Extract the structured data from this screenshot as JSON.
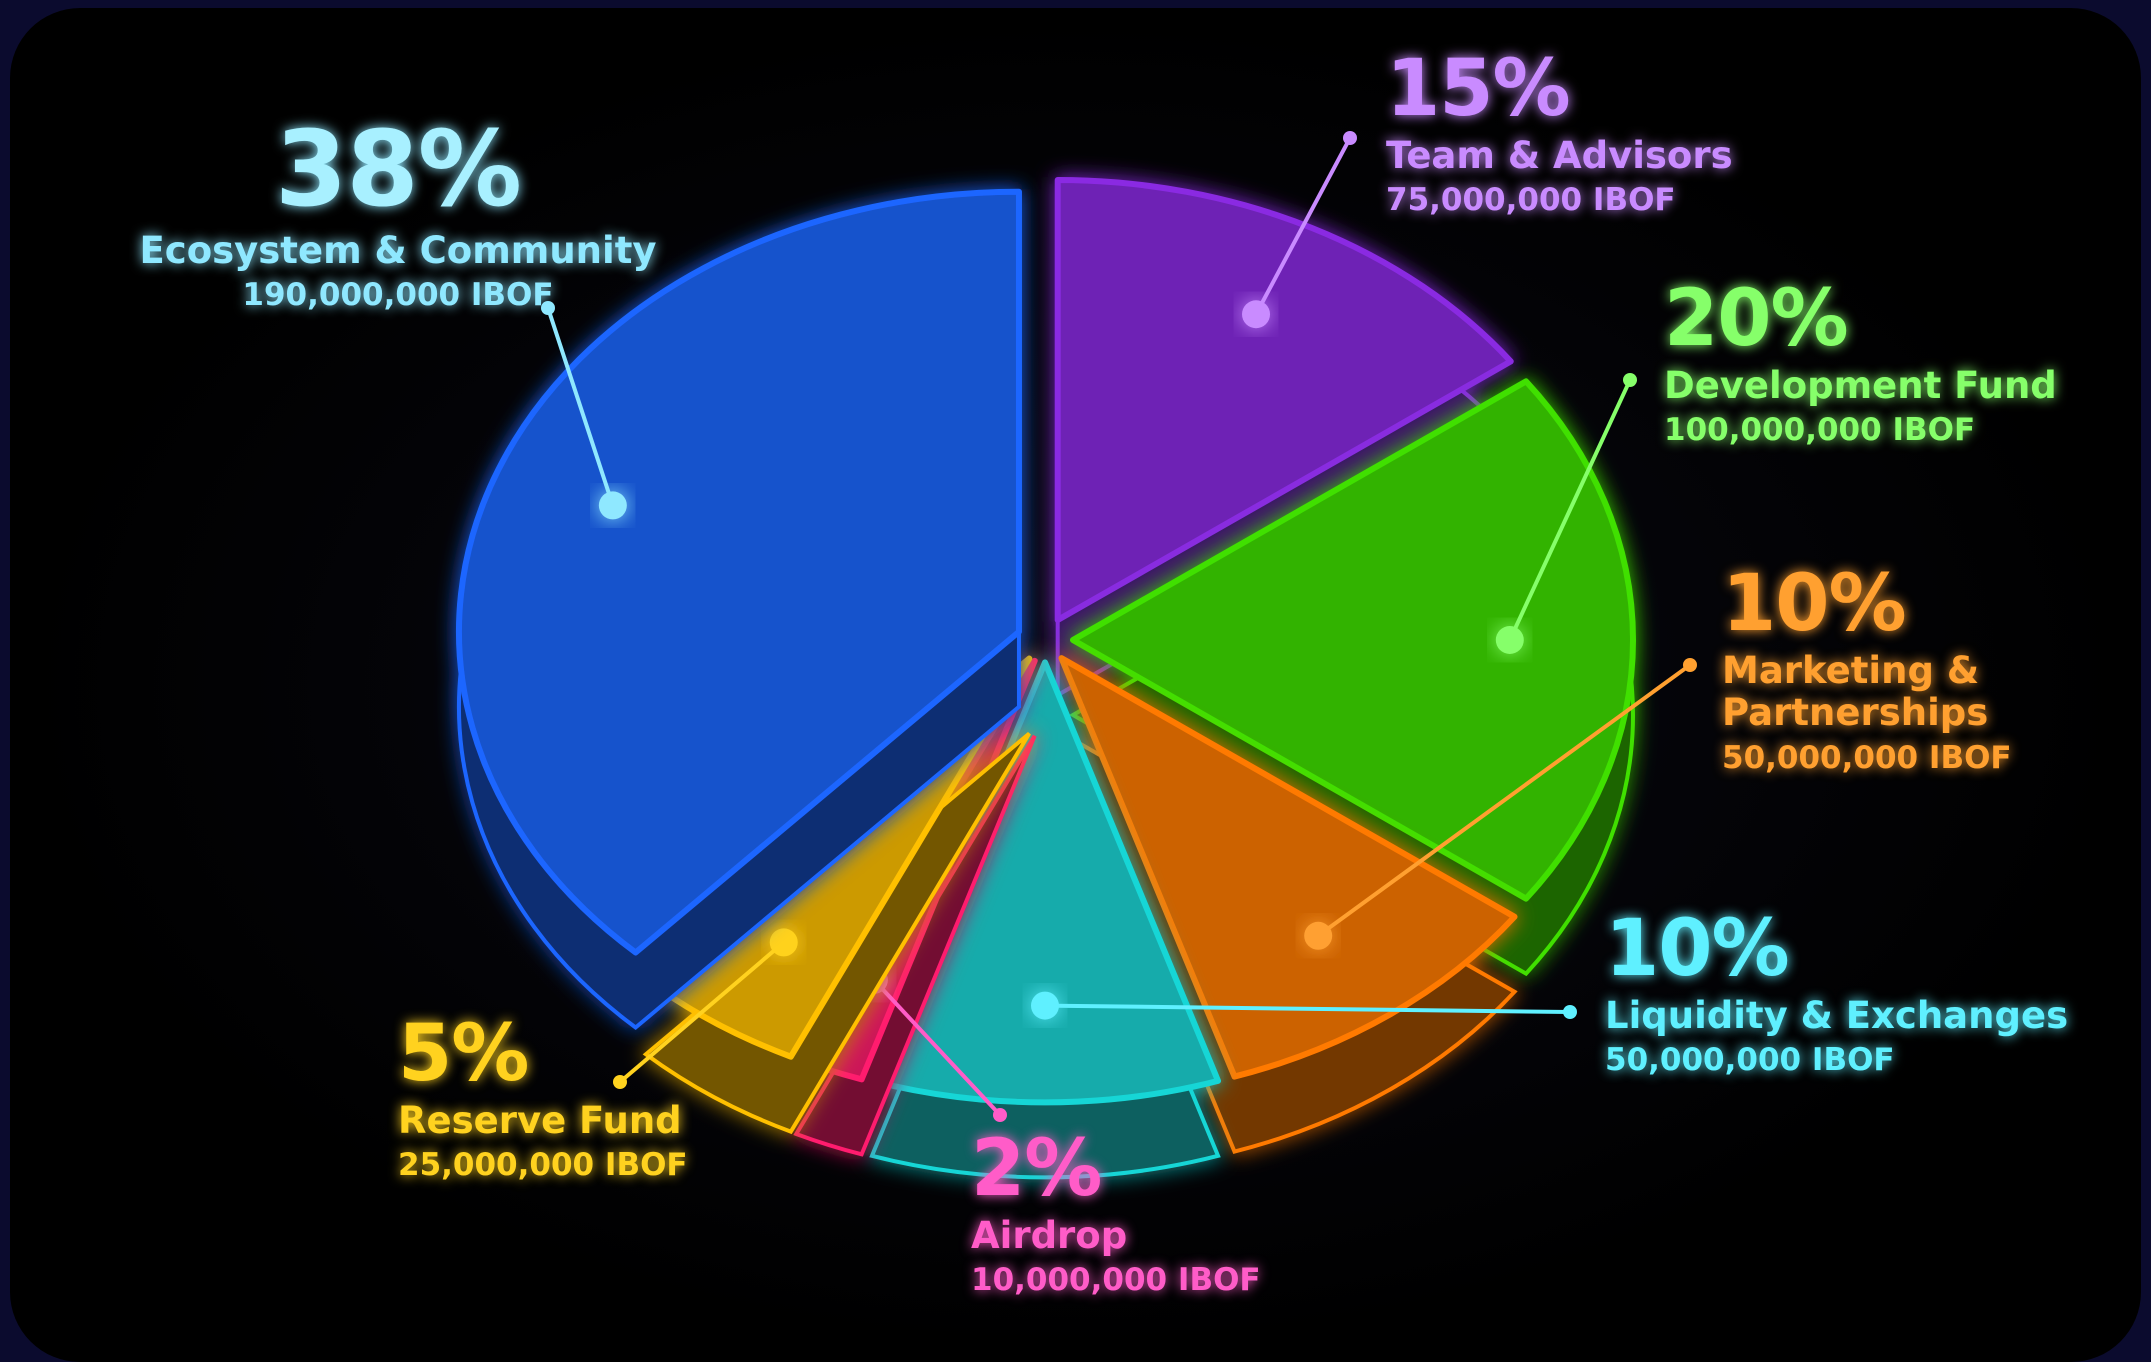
{
  "chart_data": {
    "type": "pie",
    "categories": [
      "Team & Advisors",
      "Development Fund",
      "Marketing & Partnerships",
      "Liquidity & Exchanges",
      "Airdrop",
      "Reserve Fund",
      "Ecosystem & Community"
    ],
    "values": [
      15,
      20,
      10,
      10,
      2,
      5,
      38
    ],
    "value_labels": [
      "15%",
      "20%",
      "10%",
      "10%",
      "2%",
      "5%",
      "38%"
    ],
    "amount_labels": [
      "75,000,000 IBOF",
      "100,000,000 IBOF",
      "50,000,000 IBOF",
      "50,000,000 IBOF",
      "10,000,000 IBOF",
      "25,000,000 IBOF",
      "190,000,000 IBOF"
    ],
    "colors": [
      "#8a2be2",
      "#3fe000",
      "#ff7a00",
      "#19d6d6",
      "#ff1a6e",
      "#ffc000",
      "#1e66ff"
    ],
    "label_colors": [
      "#c98bff",
      "#86ff6a",
      "#ffa030",
      "#5ff0ff",
      "#ff5cc8",
      "#ffd21f",
      "#8fe8ff"
    ]
  }
}
